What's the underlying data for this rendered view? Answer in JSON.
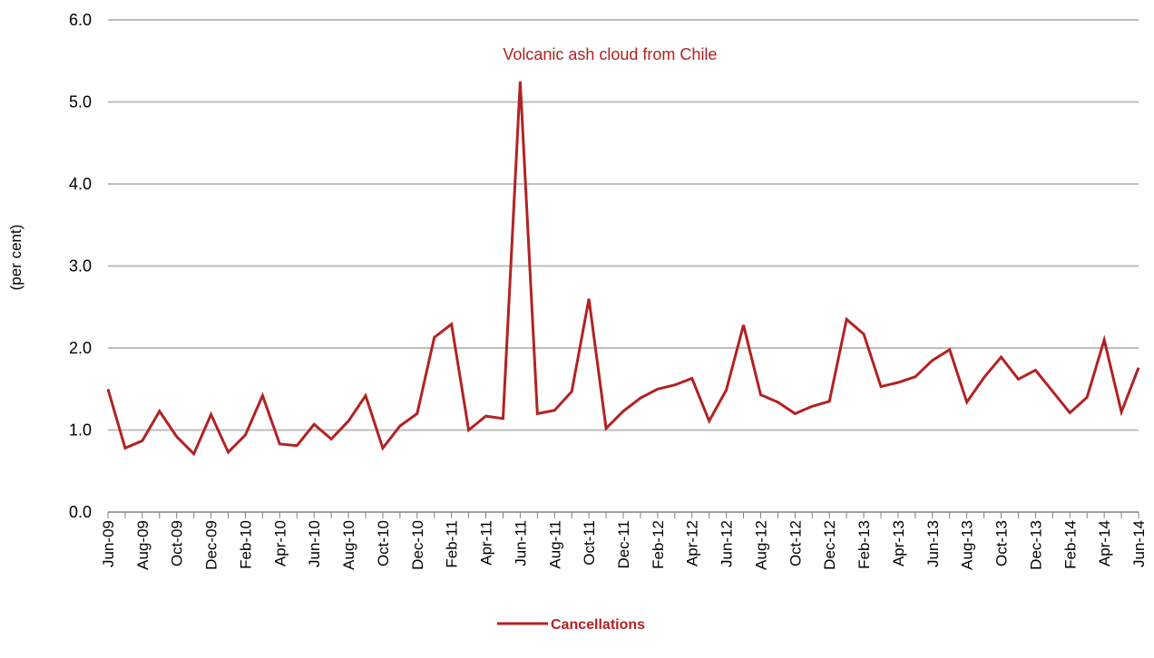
{
  "chart_data": {
    "type": "line",
    "title": "",
    "xlabel": "",
    "ylabel": "(per cent)",
    "ylim": [
      0,
      6
    ],
    "yticks": [
      "0.0",
      "1.0",
      "2.0",
      "3.0",
      "4.0",
      "5.0",
      "6.0"
    ],
    "grid": "horizontal",
    "legend_position": "bottom-center",
    "series_color": "#B22222",
    "annotation": {
      "text": "Volcanic ash cloud from Chile",
      "x": "Jun-11"
    },
    "x": [
      "Jun-09",
      "Jul-09",
      "Aug-09",
      "Sep-09",
      "Oct-09",
      "Nov-09",
      "Dec-09",
      "Jan-10",
      "Feb-10",
      "Mar-10",
      "Apr-10",
      "May-10",
      "Jun-10",
      "Jul-10",
      "Aug-10",
      "Sep-10",
      "Oct-10",
      "Nov-10",
      "Dec-10",
      "Jan-11",
      "Feb-11",
      "Mar-11",
      "Apr-11",
      "May-11",
      "Jun-11",
      "Jul-11",
      "Aug-11",
      "Sep-11",
      "Oct-11",
      "Nov-11",
      "Dec-11",
      "Jan-12",
      "Feb-12",
      "Mar-12",
      "Apr-12",
      "May-12",
      "Jun-12",
      "Jul-12",
      "Aug-12",
      "Sep-12",
      "Oct-12",
      "Nov-12",
      "Dec-12",
      "Jan-13",
      "Feb-13",
      "Mar-13",
      "Apr-13",
      "May-13",
      "Jun-13",
      "Jul-13",
      "Aug-13",
      "Sep-13",
      "Oct-13",
      "Nov-13",
      "Dec-13",
      "Jan-14",
      "Feb-14",
      "Mar-14",
      "Apr-14",
      "May-14",
      "Jun-14"
    ],
    "xtick_labels": [
      "Jun-09",
      "Aug-09",
      "Oct-09",
      "Dec-09",
      "Feb-10",
      "Apr-10",
      "Jun-10",
      "Aug-10",
      "Oct-10",
      "Dec-10",
      "Feb-11",
      "Apr-11",
      "Jun-11",
      "Aug-11",
      "Oct-11",
      "Dec-11",
      "Feb-12",
      "Apr-12",
      "Jun-12",
      "Aug-12",
      "Oct-12",
      "Dec-12",
      "Feb-13",
      "Apr-13",
      "Jun-13",
      "Aug-13",
      "Oct-13",
      "Dec-13",
      "Feb-14",
      "Apr-14",
      "Jun-14"
    ],
    "series": [
      {
        "name": "Cancellations",
        "values": [
          1.5,
          0.78,
          0.87,
          1.23,
          0.92,
          0.71,
          1.19,
          0.73,
          0.94,
          1.42,
          0.83,
          0.81,
          1.07,
          0.89,
          1.11,
          1.42,
          0.78,
          1.05,
          1.2,
          2.13,
          2.29,
          1.0,
          1.17,
          1.14,
          5.25,
          1.2,
          1.24,
          1.47,
          2.6,
          1.02,
          1.23,
          1.39,
          1.5,
          1.55,
          1.63,
          1.11,
          1.49,
          2.28,
          1.43,
          1.34,
          1.2,
          1.29,
          1.35,
          2.35,
          2.17,
          1.53,
          1.58,
          1.65,
          1.85,
          1.98,
          1.34,
          1.64,
          1.89,
          1.62,
          1.73,
          1.47,
          1.21,
          1.4,
          2.1,
          1.22,
          1.76
        ]
      }
    ]
  }
}
